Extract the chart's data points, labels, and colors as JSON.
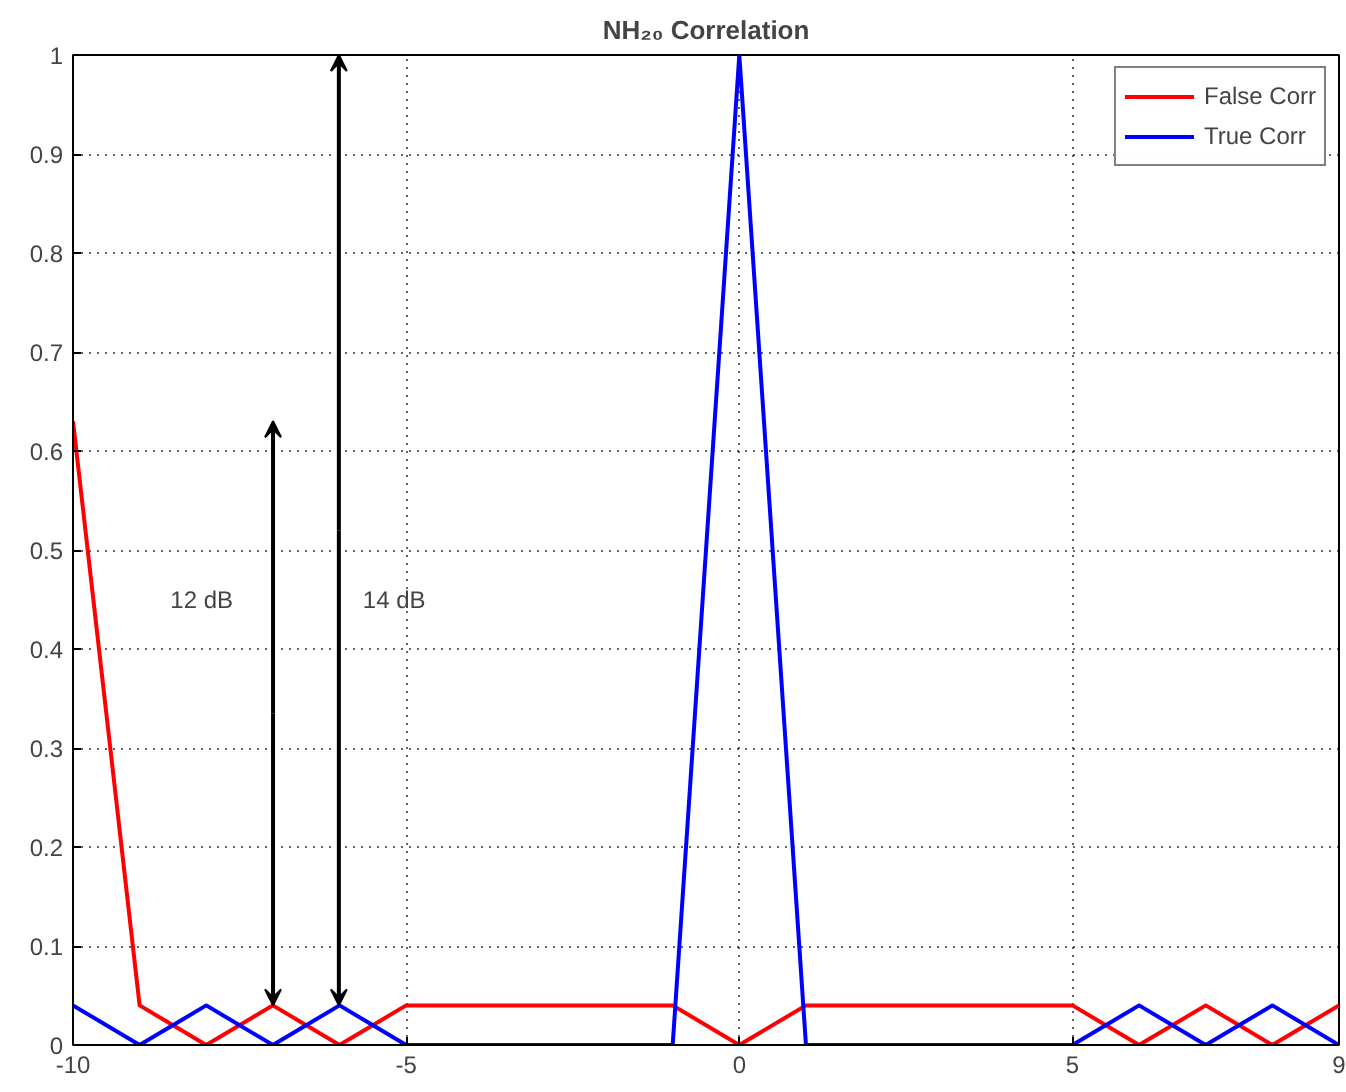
{
  "chart_data": {
    "type": "line",
    "title": "NH₂₀ Correlation",
    "x": [
      -10,
      -9,
      -8,
      -7,
      -6,
      -5,
      -4,
      -3,
      -2,
      -1,
      0,
      1,
      2,
      3,
      4,
      5,
      6,
      7,
      8,
      9
    ],
    "series": [
      {
        "name": "False Corr",
        "color": "#ff0000",
        "values": [
          0.63,
          0.04,
          0,
          0.04,
          0,
          0.04,
          0.04,
          0.04,
          0.04,
          0.04,
          0,
          0.04,
          0.04,
          0.04,
          0.04,
          0.04,
          0,
          0.04,
          0,
          0.04
        ]
      },
      {
        "name": "True Corr",
        "color": "#0000ff",
        "values": [
          0.04,
          0,
          0.04,
          0,
          0.04,
          0,
          0,
          0,
          0,
          0,
          1,
          0,
          0,
          0,
          0,
          0,
          0.04,
          0,
          0.04,
          0
        ]
      }
    ],
    "xlim": [
      -10,
      9
    ],
    "xticks": [
      -10,
      -5,
      0,
      5,
      9
    ],
    "ylim": [
      0,
      1
    ],
    "yticks": [
      0,
      0.1,
      0.2,
      0.3,
      0.4,
      0.5,
      0.6,
      0.7,
      0.8,
      0.9,
      1
    ],
    "annotations": [
      "12 dB",
      "14 dB"
    ],
    "grid": true,
    "legend": "top right",
    "marker": "none",
    "line_style": "solid"
  }
}
